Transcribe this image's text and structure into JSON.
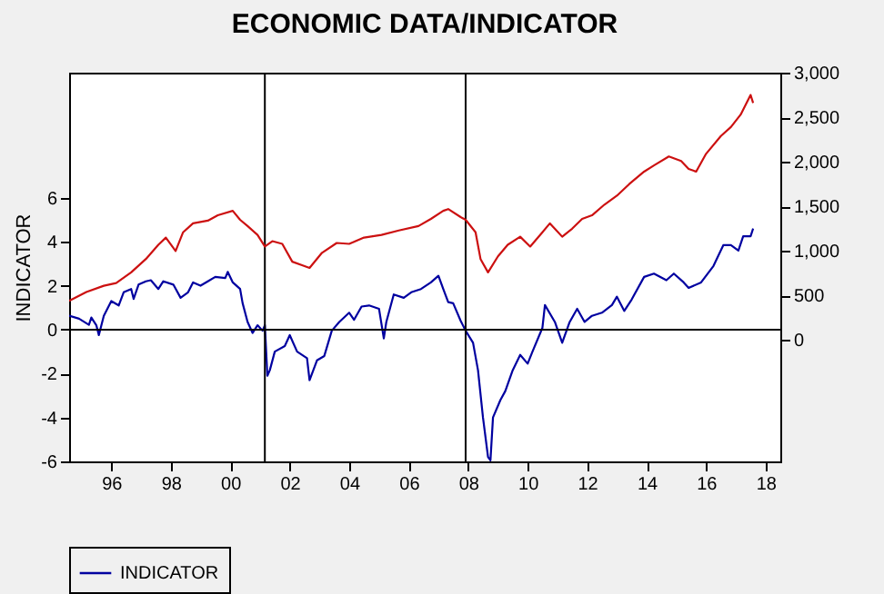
{
  "chart_data": {
    "type": "line",
    "title": "ECONOMIC DATA/INDICATOR",
    "ylabel": "INDICATOR",
    "xlim": [
      "1994-08",
      "2018-07"
    ],
    "xticks": [
      {
        "value": "1996-01",
        "label": "96"
      },
      {
        "value": "1998-01",
        "label": "98"
      },
      {
        "value": "2000-01",
        "label": "00"
      },
      {
        "value": "2002-01",
        "label": "02"
      },
      {
        "value": "2004-01",
        "label": "04"
      },
      {
        "value": "2006-01",
        "label": "06"
      },
      {
        "value": "2008-01",
        "label": "08"
      },
      {
        "value": "2010-01",
        "label": "10"
      },
      {
        "value": "2012-01",
        "label": "12"
      },
      {
        "value": "2014-01",
        "label": "14"
      },
      {
        "value": "2016-01",
        "label": "16"
      },
      {
        "value": "2018-01",
        "label": "18"
      }
    ],
    "ylim": [
      -6,
      11.7
    ],
    "yticks": [
      -6,
      -4,
      -2,
      0,
      2,
      4,
      6
    ],
    "y2lim": [
      -1360,
      3000
    ],
    "y2ticks": [
      0,
      500,
      {
        "value": 1000,
        "label": "1,000"
      },
      {
        "value": 1500,
        "label": "1,500"
      },
      {
        "value": 2000,
        "label": "2,000"
      },
      {
        "value": 2500,
        "label": "2,500"
      },
      {
        "value": 3000,
        "label": "3,000"
      }
    ],
    "legend": "bottom",
    "grid": false,
    "ref_lines": [
      {
        "axis": "y",
        "value": 0,
        "color": "#000000"
      },
      {
        "axis": "x",
        "value": "2001-03",
        "color": "#000000"
      },
      {
        "axis": "x",
        "value": "2007-12",
        "color": "#000000"
      }
    ],
    "series": [
      {
        "name": "INDICATOR",
        "color": "#0000a0",
        "x": [
          "1994-08",
          "1994-12",
          "1995-04",
          "1995-05",
          "1995-07",
          "1995-08",
          "1995-10",
          "1996-01",
          "1996-04",
          "1996-06",
          "1996-09",
          "1996-10",
          "1996-12",
          "1997-03",
          "1997-05",
          "1997-08",
          "1997-10",
          "1998-02",
          "1998-05",
          "1998-08",
          "1998-10",
          "1999-01",
          "1999-04",
          "1999-07",
          "1999-11",
          "1999-12",
          "2000-02",
          "2000-05",
          "2000-06",
          "2000-08",
          "2000-10",
          "2000-12",
          "2001-02",
          "2001-03",
          "2001-04",
          "2001-05",
          "2001-07",
          "2001-11",
          "2002-01",
          "2002-04",
          "2002-08",
          "2002-09",
          "2002-12",
          "2003-03",
          "2003-06",
          "2003-09",
          "2004-01",
          "2004-03",
          "2004-06",
          "2004-09",
          "2005-01",
          "2005-03",
          "2005-04",
          "2005-07",
          "2005-11",
          "2006-02",
          "2006-06",
          "2006-10",
          "2007-01",
          "2007-03",
          "2007-05",
          "2007-07",
          "2007-10",
          "2007-12",
          "2008-03",
          "2008-05",
          "2008-07",
          "2008-09",
          "2008-10",
          "2008-11",
          "2009-02",
          "2009-04",
          "2009-07",
          "2009-10",
          "2010-01",
          "2010-03",
          "2010-07",
          "2010-08",
          "2010-12",
          "2011-03",
          "2011-06",
          "2011-09",
          "2011-12",
          "2012-03",
          "2012-07",
          "2012-11",
          "2013-01",
          "2013-04",
          "2013-07",
          "2013-12",
          "2014-04",
          "2014-09",
          "2014-12",
          "2015-04",
          "2015-06",
          "2015-11",
          "2016-04",
          "2016-08",
          "2016-11",
          "2017-02",
          "2017-04",
          "2017-07",
          "2017-08"
        ],
        "values": [
          0.63,
          0.5,
          0.22,
          0.55,
          0.2,
          -0.25,
          0.63,
          1.3,
          1.1,
          1.7,
          1.85,
          1.4,
          2.05,
          2.2,
          2.25,
          1.85,
          2.2,
          2.05,
          1.45,
          1.7,
          2.15,
          2.0,
          2.2,
          2.4,
          2.35,
          2.63,
          2.15,
          1.85,
          1.2,
          0.35,
          -0.15,
          0.2,
          -0.05,
          0.2,
          -2.1,
          -1.85,
          -1.0,
          -0.75,
          -0.25,
          -1.0,
          -1.3,
          -2.3,
          -1.4,
          -1.2,
          -0.05,
          0.35,
          0.77,
          0.45,
          1.05,
          1.1,
          0.95,
          -0.4,
          0.35,
          1.6,
          1.45,
          1.7,
          1.85,
          2.15,
          2.45,
          1.85,
          1.25,
          1.2,
          0.4,
          -0.05,
          -0.6,
          -1.85,
          -4.0,
          -5.8,
          -5.95,
          -4.0,
          -3.2,
          -2.8,
          -1.85,
          -1.15,
          -1.55,
          -1.0,
          0.08,
          1.12,
          0.35,
          -0.6,
          0.35,
          0.95,
          0.35,
          0.63,
          0.77,
          1.12,
          1.5,
          0.85,
          1.37,
          2.4,
          2.55,
          2.25,
          2.55,
          2.15,
          1.9,
          2.15,
          2.9,
          3.85,
          3.85,
          3.6,
          4.25,
          4.25,
          4.6
        ]
      },
      {
        "color": "#cc1010",
        "axis": "y2",
        "x": [
          "1994-08",
          "1995-03",
          "1995-10",
          "1996-03",
          "1996-09",
          "1997-03",
          "1997-08",
          "1997-11",
          "1998-03",
          "1998-06",
          "1998-10",
          "1999-04",
          "1999-08",
          "2000-02",
          "2000-05",
          "2000-08",
          "2000-12",
          "2001-03",
          "2001-06",
          "2001-10",
          "2002-02",
          "2002-06",
          "2002-09",
          "2003-02",
          "2003-08",
          "2004-01",
          "2004-07",
          "2005-02",
          "2005-09",
          "2006-05",
          "2006-10",
          "2007-03",
          "2007-05",
          "2007-10",
          "2007-12",
          "2008-04",
          "2008-06",
          "2008-09",
          "2009-01",
          "2009-05",
          "2009-10",
          "2010-02",
          "2010-07",
          "2010-10",
          "2011-03",
          "2011-07",
          "2011-11",
          "2012-03",
          "2012-08",
          "2013-01",
          "2013-06",
          "2013-12",
          "2014-04",
          "2014-10",
          "2015-03",
          "2015-06",
          "2015-09",
          "2016-01",
          "2016-07",
          "2016-11",
          "2017-03",
          "2017-07",
          "2017-08"
        ],
        "values": [
          440,
          540,
          610,
          640,
          760,
          910,
          1070,
          1150,
          1000,
          1210,
          1310,
          1340,
          1400,
          1450,
          1350,
          1280,
          1180,
          1050,
          1110,
          1080,
          880,
          840,
          810,
          980,
          1090,
          1080,
          1150,
          1180,
          1230,
          1280,
          1360,
          1450,
          1470,
          1380,
          1350,
          1210,
          910,
          760,
          940,
          1070,
          1160,
          1050,
          1210,
          1310,
          1160,
          1250,
          1360,
          1400,
          1520,
          1620,
          1750,
          1890,
          1960,
          2060,
          2010,
          1920,
          1890,
          2090,
          2290,
          2390,
          2530,
          2750,
          2660
        ]
      }
    ]
  }
}
